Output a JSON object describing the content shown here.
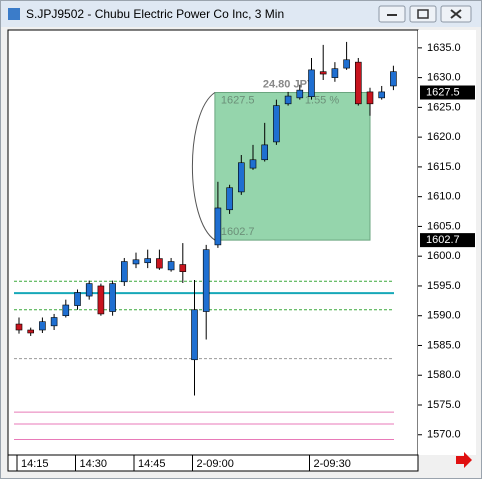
{
  "chart_data": {
    "type": "candlestick",
    "title": "S.JPJ9502 - Chubu Electric Power Co Inc, 3 Min",
    "categories": [
      "14:15",
      null,
      null,
      null,
      null,
      "14:30",
      null,
      null,
      null,
      null,
      "14:45",
      null,
      null,
      null,
      null,
      "2-09:00",
      null,
      null,
      null,
      null,
      null,
      null,
      null,
      null,
      null,
      "2-09:30",
      null,
      null,
      null,
      null,
      null,
      null,
      null
    ],
    "open": [
      1588.6,
      1587.6,
      1587.6,
      1588.3,
      1590.0,
      1591.7,
      1593.3,
      1595.0,
      1590.7,
      1595.7,
      1598.7,
      1598.9,
      1599.6,
      1597.7,
      1598.6,
      1582.6,
      1590.7,
      1601.9,
      1607.8,
      1610.8,
      1614.8,
      1616.2,
      1619.2,
      1625.6,
      1626.6,
      1626.8,
      1631.0,
      1630.0,
      1631.6,
      1632.6,
      1627.6,
      1626.6,
      1628.6
    ],
    "high": [
      1589.7,
      1588.0,
      1589.7,
      1590.3,
      1592.7,
      1594.4,
      1595.9,
      1595.4,
      1595.9,
      1599.7,
      1600.6,
      1601.1,
      1601.1,
      1599.7,
      1602.2,
      1596.0,
      1601.9,
      1612.5,
      1612.0,
      1617.0,
      1618.7,
      1622.4,
      1626.3,
      1627.6,
      1628.8,
      1633.3,
      1635.5,
      1632.6,
      1636.0,
      1633.3,
      1628.3,
      1628.6,
      1632.0
    ],
    "low": [
      1587.0,
      1586.6,
      1587.1,
      1587.6,
      1589.7,
      1591.0,
      1592.7,
      1590.0,
      1590.0,
      1595.0,
      1598.0,
      1598.0,
      1597.7,
      1597.4,
      1595.5,
      1576.6,
      1586.0,
      1601.4,
      1607.1,
      1610.3,
      1614.5,
      1615.9,
      1618.7,
      1625.3,
      1626.3,
      1626.3,
      1629.6,
      1629.3,
      1631.3,
      1625.3,
      1623.6,
      1626.3,
      1627.9
    ],
    "close": [
      1587.6,
      1587.1,
      1589.0,
      1589.7,
      1591.8,
      1593.9,
      1595.4,
      1590.3,
      1595.4,
      1599.1,
      1599.4,
      1599.6,
      1598.0,
      1599.1,
      1597.4,
      1591.0,
      1601.1,
      1608.1,
      1611.5,
      1615.7,
      1616.2,
      1618.7,
      1625.3,
      1626.9,
      1627.9,
      1631.3,
      1630.6,
      1631.5,
      1633.0,
      1625.6,
      1625.6,
      1627.6,
      1631.0
    ],
    "up_color": "#1f6fd1",
    "down_color": "#c8141e",
    "ylim": [
      1566.6,
      1638
    ],
    "yticks": [
      {
        "value": 1570,
        "label": "1570.0"
      },
      {
        "value": 1575,
        "label": "1575.0"
      },
      {
        "value": 1580,
        "label": "1580.0"
      },
      {
        "value": 1585,
        "label": "1585.0"
      },
      {
        "value": 1590,
        "label": "1590.0"
      },
      {
        "value": 1595,
        "label": "1595.0"
      },
      {
        "value": 1600,
        "label": "1600.0"
      },
      {
        "value": 1605,
        "label": "1605.0"
      },
      {
        "value": 1610,
        "label": "1610.0"
      },
      {
        "value": 1615,
        "label": "1615.0"
      },
      {
        "value": 1620,
        "label": "1620.0"
      },
      {
        "value": 1625,
        "label": "1625.0"
      },
      {
        "value": 1630,
        "label": "1630.0"
      },
      {
        "value": 1635,
        "label": "1635.0"
      }
    ],
    "levels": [
      {
        "value": 1595.8,
        "color": "#3aa83a",
        "dash": true
      },
      {
        "value": 1591.0,
        "color": "#3aa83a",
        "dash": true
      },
      {
        "value": 1593.8,
        "color": "#16a8b8",
        "dash": false
      },
      {
        "value": 1582.8,
        "color": "#999999",
        "dash": true
      },
      {
        "value": 1573.8,
        "color": "#e87ab8",
        "dash": false
      },
      {
        "value": 1571.8,
        "color": "#e87ab8",
        "dash": false
      },
      {
        "value": 1569.2,
        "color": "#e87ab8",
        "dash": false
      }
    ],
    "measure": {
      "from": 17,
      "to": 30,
      "high": 1627.5,
      "low": 1602.7,
      "change_label": "24.80 JPY",
      "percent_label": "1.55 %",
      "color": "#8fd3a8"
    }
  }
}
